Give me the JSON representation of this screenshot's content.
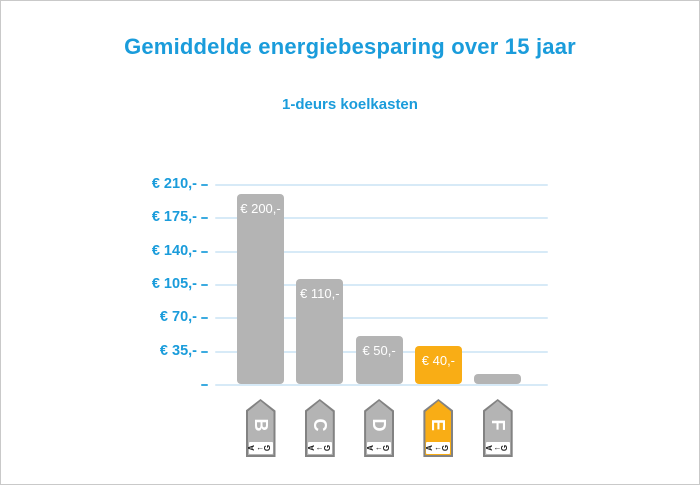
{
  "title": "Gemiddelde energiebesparing over 15 jaar",
  "subtitle": "1-deurs koelkasten",
  "colors": {
    "accent_blue": "#1a9cdb",
    "bar_gray": "#b4b4b4",
    "bar_highlight_orange": "#f9ad15",
    "gridline_light_blue": "#d7eaf7",
    "icon_border_gray": "#828282",
    "icon_letter_white": "#ffffff",
    "scale_text_black": "#1a1a1a",
    "page_border_gray": "#c9c9c9",
    "background_white": "#ffffff"
  },
  "chart_data": {
    "type": "bar",
    "title": "Gemiddelde energiebesparing over 15 jaar",
    "subtitle": "1-deurs koelkasten",
    "categories": [
      "B",
      "C",
      "D",
      "E",
      "F"
    ],
    "values": [
      200,
      110,
      50,
      40,
      10
    ],
    "bar_labels": [
      "€ 200,-",
      "€ 110,-",
      "€ 50,-",
      "€ 40,-",
      ""
    ],
    "highlight_index": 3,
    "highlight_category": "E",
    "xlabel": "",
    "ylabel": "",
    "ylim": [
      0,
      210
    ],
    "ytick_values": [
      35,
      70,
      105,
      140,
      175,
      210
    ],
    "ytick_labels": [
      "€ 35,-",
      "€ 70,-",
      "€ 105,-",
      "€ 140,-",
      "€ 175,-",
      "€ 210,-"
    ],
    "grid": true,
    "legend": false,
    "x_axis_icon_type": "eu-energy-label-arrow",
    "energy_scale": {
      "start": "A",
      "arrow": "←",
      "end": "G"
    }
  }
}
